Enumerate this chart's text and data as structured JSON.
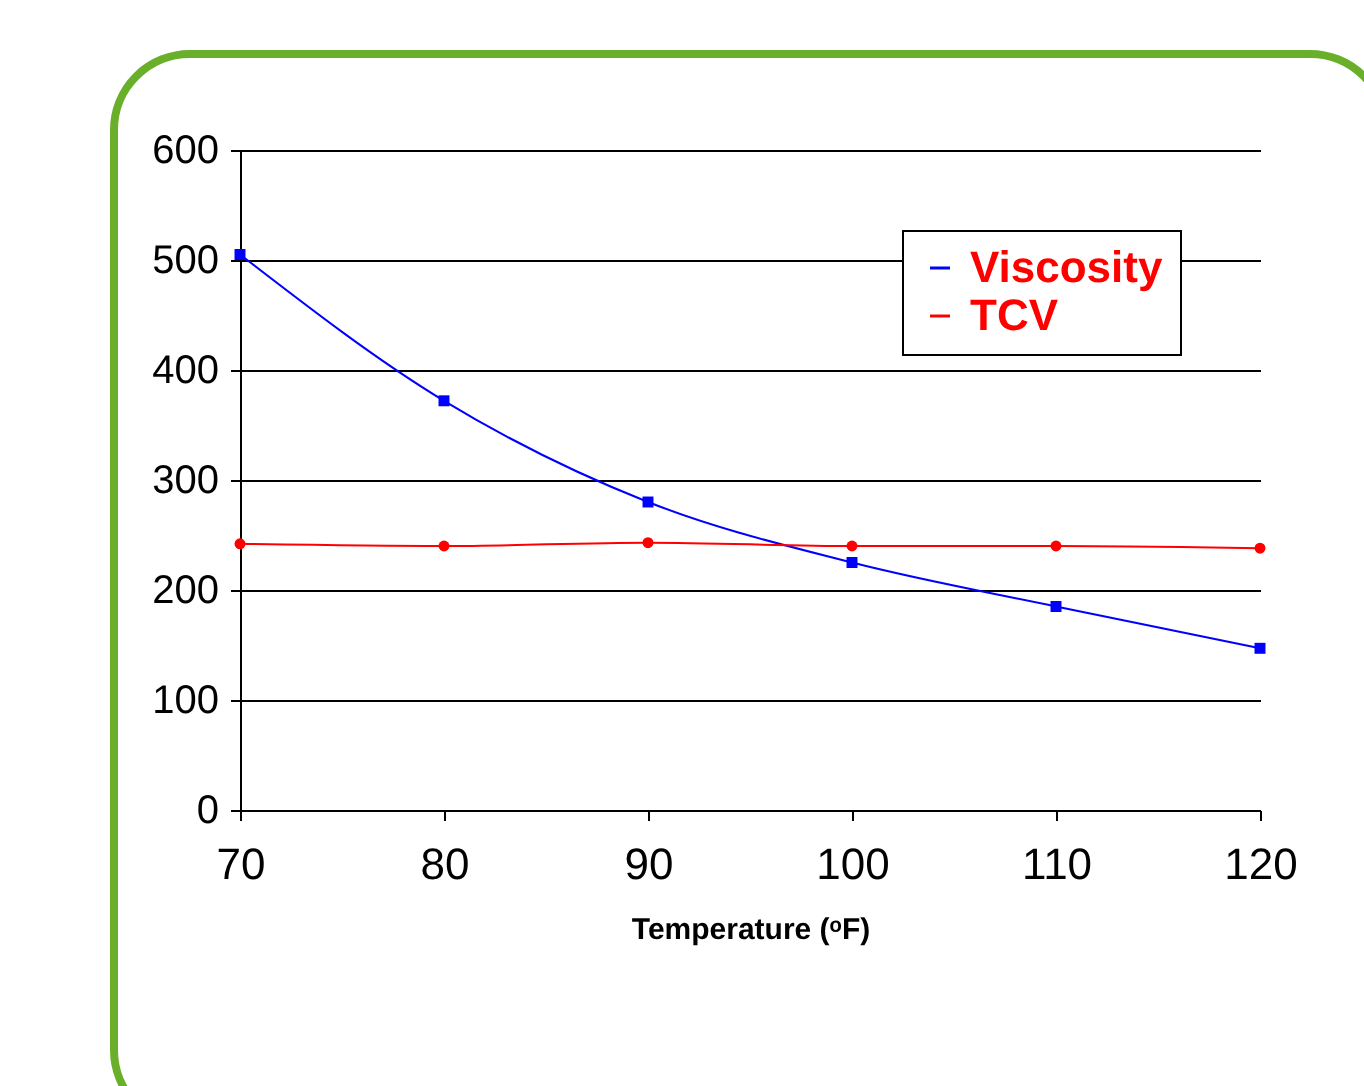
{
  "chart_data": {
    "type": "line",
    "xlabel": "Temperature (ᵒF)",
    "x": [
      70,
      80,
      90,
      100,
      110,
      120
    ],
    "series": [
      {
        "name": "Viscosity",
        "color": "#0000ff",
        "marker": "square",
        "values": [
          505,
          372,
          280,
          225,
          185,
          147
        ]
      },
      {
        "name": "TCV",
        "color": "#ff0000",
        "marker": "circle",
        "values": [
          242,
          240,
          243,
          240,
          240,
          238
        ]
      }
    ],
    "xlim": [
      70,
      120
    ],
    "xticks": [
      70,
      80,
      90,
      100,
      110,
      120
    ],
    "ylim": [
      0,
      600
    ],
    "yticks": [
      0,
      100,
      200,
      300,
      400,
      500,
      600
    ],
    "grid": "y",
    "legend": "top right"
  }
}
